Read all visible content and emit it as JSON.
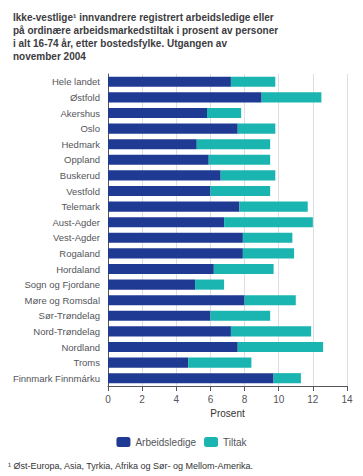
{
  "chart_data": {
    "type": "bar",
    "orientation": "horizontal",
    "stacked": true,
    "title": "Ikke-vestlige¹ innvandrere registrert arbeidsledige eller\npå ordinære arbeidsmarkedstiltak i prosent av personer\ni alt 16-74 år, etter bostedsfylke. Utgangen av\nnovember 2004",
    "categories": [
      "Hele landet",
      "Østfold",
      "Akershus",
      "Oslo",
      "Hedmark",
      "Oppland",
      "Buskerud",
      "Vestfold",
      "Telemark",
      "Aust-Agder",
      "Vest-Agder",
      "Rogaland",
      "Hordaland",
      "Sogn og Fjordane",
      "Møre og Romsdal",
      "Sør-Trøndelag",
      "Nord-Trøndelag",
      "Nordland",
      "Troms",
      "Finnmark Finnmárku"
    ],
    "series": [
      {
        "name": "Arbeidsledige",
        "color": "#1f3a93",
        "values": [
          7.2,
          9.0,
          5.8,
          7.6,
          5.2,
          5.9,
          6.6,
          6.0,
          7.7,
          6.8,
          7.9,
          7.9,
          6.2,
          5.1,
          8.0,
          6.0,
          7.2,
          7.6,
          4.7,
          9.7
        ]
      },
      {
        "name": "Tiltak",
        "color": "#1ab5b0",
        "values": [
          2.6,
          3.5,
          2.0,
          2.2,
          4.3,
          3.6,
          3.2,
          3.5,
          4.0,
          5.2,
          2.9,
          3.0,
          3.5,
          1.7,
          3.0,
          3.5,
          4.7,
          5.0,
          3.7,
          1.6
        ]
      }
    ],
    "xlabel": "Prosent",
    "xlim": [
      0,
      14
    ],
    "xticks": [
      0,
      2,
      4,
      6,
      8,
      10,
      12,
      14
    ],
    "grid": true,
    "legend": "bottom",
    "annotations": [
      "¹ Øst-Europa, Asia, Tyrkia, Afrika og Sør- og Mellom-Amerika."
    ]
  }
}
